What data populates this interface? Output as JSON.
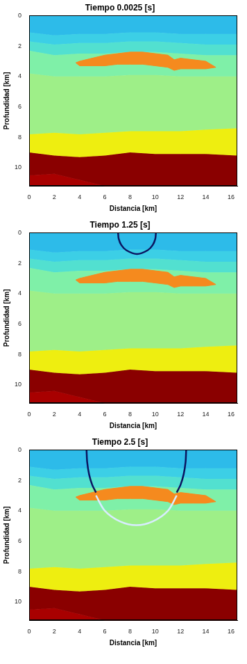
{
  "chart_data": [
    {
      "type": "area",
      "title": "Tiempo 0.0025 [s]",
      "x_label": "Distancia [km]",
      "y_label": "Profundidad [km]",
      "xlim": [
        0,
        16.5
      ],
      "ylim": [
        0,
        11.2
      ],
      "xticks": [
        0,
        2,
        4,
        6,
        8,
        10,
        12,
        14,
        16
      ],
      "yticks": [
        0,
        2,
        4,
        6,
        8,
        10
      ],
      "grid": false,
      "layers": [
        {
          "color": "#2dbbe9",
          "x": [
            0,
            2,
            4,
            6,
            8,
            10,
            12,
            14,
            16.5
          ],
          "top": [
            0,
            0,
            0,
            0,
            0,
            0,
            0,
            0,
            0
          ]
        },
        {
          "color": "#3ccfe6",
          "x": [
            0,
            2,
            4,
            6,
            8,
            10,
            12,
            14,
            16.5
          ],
          "top": [
            1.1,
            1.3,
            1.2,
            1.2,
            1.1,
            1.1,
            1.2,
            1.2,
            1.2
          ]
        },
        {
          "color": "#52e0d0",
          "x": [
            0,
            2,
            4,
            6,
            8,
            10,
            12,
            14,
            16.5
          ],
          "top": [
            1.7,
            1.9,
            1.8,
            1.8,
            1.7,
            1.7,
            1.8,
            1.9,
            1.9
          ]
        },
        {
          "color": "#7ff0a8",
          "x": [
            0,
            2,
            4,
            6,
            8,
            10,
            12,
            14,
            16.5
          ],
          "top": [
            2.3,
            2.6,
            2.5,
            2.5,
            2.4,
            2.4,
            2.5,
            2.6,
            2.6
          ]
        },
        {
          "color": "#9eef88",
          "x": [
            0,
            2,
            4,
            6,
            8,
            10,
            12,
            14,
            16.5
          ],
          "top": [
            3.8,
            4.0,
            4.0,
            4.0,
            3.9,
            3.9,
            4.0,
            4.0,
            4.0
          ]
        },
        {
          "color": "#eeee10",
          "x": [
            0,
            2,
            4,
            6,
            8,
            10,
            12,
            14,
            16.5
          ],
          "top": [
            7.8,
            7.7,
            7.8,
            7.7,
            7.6,
            7.6,
            7.6,
            7.5,
            7.4
          ]
        },
        {
          "color": "#8a0000",
          "x": [
            0,
            2,
            4,
            6,
            8,
            10,
            12,
            14,
            16.5
          ],
          "top": [
            9.0,
            9.2,
            9.3,
            9.2,
            9.0,
            9.1,
            9.1,
            9.1,
            9.2
          ]
        },
        {
          "color": "#a80000",
          "x": [
            0,
            2,
            4,
            6,
            8,
            10,
            12,
            14,
            16.5
          ],
          "top": [
            10.5,
            10.4,
            10.8,
            11.2,
            11.2,
            11.2,
            11.2,
            11.2,
            11.2
          ]
        }
      ],
      "bodies": [
        {
          "color": "#f58a1e",
          "x": [
            3.7,
            4,
            5,
            6,
            7,
            8,
            9,
            10,
            11,
            11.5,
            12,
            13,
            14,
            14.8
          ],
          "top": [
            3.1,
            3.0,
            2.8,
            2.6,
            2.5,
            2.4,
            2.4,
            2.5,
            2.6,
            2.9,
            2.8,
            2.9,
            3.0,
            3.4
          ],
          "bottom": [
            3.1,
            3.3,
            3.3,
            3.3,
            3.2,
            3.2,
            3.2,
            3.3,
            3.4,
            3.6,
            3.5,
            3.5,
            3.5,
            3.4
          ]
        }
      ],
      "wavefronts": []
    },
    {
      "type": "area",
      "title": "Tiempo 1.25 [s]",
      "x_label": "Distancia [km]",
      "y_label": "Profundidad [km]",
      "xlim": [
        0,
        16.5
      ],
      "ylim": [
        0,
        11.2
      ],
      "xticks": [
        0,
        2,
        4,
        6,
        8,
        10,
        12,
        14,
        16
      ],
      "yticks": [
        0,
        2,
        4,
        6,
        8,
        10
      ],
      "grid": false,
      "layers": [
        {
          "color": "#2dbbe9",
          "x": [
            0,
            2,
            4,
            6,
            8,
            10,
            12,
            14,
            16.5
          ],
          "top": [
            0,
            0,
            0,
            0,
            0,
            0,
            0,
            0,
            0
          ]
        },
        {
          "color": "#3ccfe6",
          "x": [
            0,
            2,
            4,
            6,
            8,
            10,
            12,
            14,
            16.5
          ],
          "top": [
            1.1,
            1.3,
            1.2,
            1.2,
            1.1,
            1.1,
            1.2,
            1.2,
            1.2
          ]
        },
        {
          "color": "#52e0d0",
          "x": [
            0,
            2,
            4,
            6,
            8,
            10,
            12,
            14,
            16.5
          ],
          "top": [
            1.7,
            1.9,
            1.8,
            1.8,
            1.7,
            1.7,
            1.8,
            1.9,
            1.9
          ]
        },
        {
          "color": "#7ff0a8",
          "x": [
            0,
            2,
            4,
            6,
            8,
            10,
            12,
            14,
            16.5
          ],
          "top": [
            2.3,
            2.6,
            2.5,
            2.5,
            2.4,
            2.4,
            2.5,
            2.6,
            2.6
          ]
        },
        {
          "color": "#9eef88",
          "x": [
            0,
            2,
            4,
            6,
            8,
            10,
            12,
            14,
            16.5
          ],
          "top": [
            3.8,
            4.0,
            4.0,
            4.0,
            3.9,
            3.9,
            4.0,
            4.0,
            4.0
          ]
        },
        {
          "color": "#eeee10",
          "x": [
            0,
            2,
            4,
            6,
            8,
            10,
            12,
            14,
            16.5
          ],
          "top": [
            7.8,
            7.7,
            7.8,
            7.7,
            7.6,
            7.6,
            7.6,
            7.5,
            7.4
          ]
        },
        {
          "color": "#8a0000",
          "x": [
            0,
            2,
            4,
            6,
            8,
            10,
            12,
            14,
            16.5
          ],
          "top": [
            9.0,
            9.2,
            9.3,
            9.2,
            9.0,
            9.1,
            9.1,
            9.1,
            9.2
          ]
        },
        {
          "color": "#a80000",
          "x": [
            0,
            2,
            4,
            6,
            8,
            10,
            12,
            14,
            16.5
          ],
          "top": [
            10.5,
            10.4,
            10.8,
            11.2,
            11.2,
            11.2,
            11.2,
            11.2,
            11.2
          ]
        }
      ],
      "bodies": [
        {
          "color": "#f58a1e",
          "x": [
            3.7,
            4,
            5,
            6,
            7,
            8,
            9,
            10,
            11,
            11.5,
            12,
            13,
            14,
            14.8
          ],
          "top": [
            3.1,
            3.0,
            2.8,
            2.6,
            2.5,
            2.4,
            2.4,
            2.5,
            2.6,
            2.9,
            2.8,
            2.9,
            3.0,
            3.4
          ],
          "bottom": [
            3.1,
            3.3,
            3.3,
            3.3,
            3.2,
            3.2,
            3.2,
            3.3,
            3.4,
            3.6,
            3.5,
            3.5,
            3.5,
            3.4
          ]
        }
      ],
      "wavefronts": [
        {
          "color": "#0b1560",
          "points": [
            [
              7.05,
              0
            ],
            [
              7.1,
              0.4
            ],
            [
              7.3,
              0.8
            ],
            [
              7.7,
              1.15
            ],
            [
              8.55,
              1.4
            ],
            [
              9.4,
              1.15
            ],
            [
              9.8,
              0.8
            ],
            [
              10.0,
              0.4
            ],
            [
              10.05,
              0
            ]
          ]
        }
      ]
    },
    {
      "type": "area",
      "title": "Tiempo 2.5 [s]",
      "x_label": "Distancia [km]",
      "y_label": "Profundidad [km]",
      "xlim": [
        0,
        16.5
      ],
      "ylim": [
        0,
        11.2
      ],
      "xticks": [
        0,
        2,
        4,
        6,
        8,
        10,
        12,
        14,
        16
      ],
      "yticks": [
        0,
        2,
        4,
        6,
        8,
        10
      ],
      "grid": false,
      "layers": [
        {
          "color": "#2dbbe9",
          "x": [
            0,
            2,
            4,
            6,
            8,
            10,
            12,
            14,
            16.5
          ],
          "top": [
            0,
            0,
            0,
            0,
            0,
            0,
            0,
            0,
            0
          ]
        },
        {
          "color": "#3ccfe6",
          "x": [
            0,
            2,
            4,
            6,
            8,
            10,
            12,
            14,
            16.5
          ],
          "top": [
            1.1,
            1.3,
            1.2,
            1.2,
            1.1,
            1.1,
            1.2,
            1.2,
            1.2
          ]
        },
        {
          "color": "#52e0d0",
          "x": [
            0,
            2,
            4,
            6,
            8,
            10,
            12,
            14,
            16.5
          ],
          "top": [
            1.7,
            1.9,
            1.8,
            1.8,
            1.7,
            1.7,
            1.8,
            1.9,
            1.9
          ]
        },
        {
          "color": "#7ff0a8",
          "x": [
            0,
            2,
            4,
            6,
            8,
            10,
            12,
            14,
            16.5
          ],
          "top": [
            2.3,
            2.6,
            2.5,
            2.5,
            2.4,
            2.4,
            2.5,
            2.6,
            2.6
          ]
        },
        {
          "color": "#9eef88",
          "x": [
            0,
            2,
            4,
            6,
            8,
            10,
            12,
            14,
            16.5
          ],
          "top": [
            3.8,
            4.0,
            4.0,
            4.0,
            3.9,
            3.9,
            4.0,
            4.0,
            4.0
          ]
        },
        {
          "color": "#eeee10",
          "x": [
            0,
            2,
            4,
            6,
            8,
            10,
            12,
            14,
            16.5
          ],
          "top": [
            7.8,
            7.7,
            7.8,
            7.7,
            7.6,
            7.6,
            7.6,
            7.5,
            7.4
          ]
        },
        {
          "color": "#8a0000",
          "x": [
            0,
            2,
            4,
            6,
            8,
            10,
            12,
            14,
            16.5
          ],
          "top": [
            9.0,
            9.2,
            9.3,
            9.2,
            9.0,
            9.1,
            9.1,
            9.1,
            9.2
          ]
        },
        {
          "color": "#a80000",
          "x": [
            0,
            2,
            4,
            6,
            8,
            10,
            12,
            14,
            16.5
          ],
          "top": [
            10.5,
            10.4,
            10.8,
            11.2,
            11.2,
            11.2,
            11.2,
            11.2,
            11.2
          ]
        }
      ],
      "bodies": [
        {
          "color": "#f58a1e",
          "x": [
            3.7,
            4,
            5,
            6,
            7,
            8,
            9,
            10,
            11,
            11.5,
            12,
            13,
            14,
            14.8
          ],
          "top": [
            3.1,
            3.0,
            2.8,
            2.6,
            2.5,
            2.4,
            2.4,
            2.5,
            2.6,
            2.9,
            2.8,
            2.9,
            3.0,
            3.4
          ],
          "bottom": [
            3.1,
            3.3,
            3.3,
            3.3,
            3.2,
            3.2,
            3.2,
            3.3,
            3.4,
            3.6,
            3.5,
            3.5,
            3.5,
            3.4
          ]
        }
      ],
      "wavefronts": [
        {
          "color": "#d8ecff",
          "points": [
            [
              5.3,
              3.0
            ],
            [
              6.0,
              4.0
            ],
            [
              7.2,
              4.7
            ],
            [
              8.5,
              4.95
            ],
            [
              9.8,
              4.7
            ],
            [
              11.0,
              4.0
            ],
            [
              11.7,
              3.0
            ]
          ]
        },
        {
          "color": "#0b1560",
          "points": [
            [
              4.55,
              0
            ],
            [
              4.6,
              0.8
            ],
            [
              4.75,
              1.6
            ],
            [
              5.0,
              2.3
            ],
            [
              5.3,
              2.8
            ]
          ]
        },
        {
          "color": "#0b1560",
          "points": [
            [
              12.45,
              0
            ],
            [
              12.4,
              0.8
            ],
            [
              12.25,
              1.6
            ],
            [
              12.0,
              2.3
            ],
            [
              11.7,
              2.8
            ]
          ]
        }
      ]
    }
  ]
}
